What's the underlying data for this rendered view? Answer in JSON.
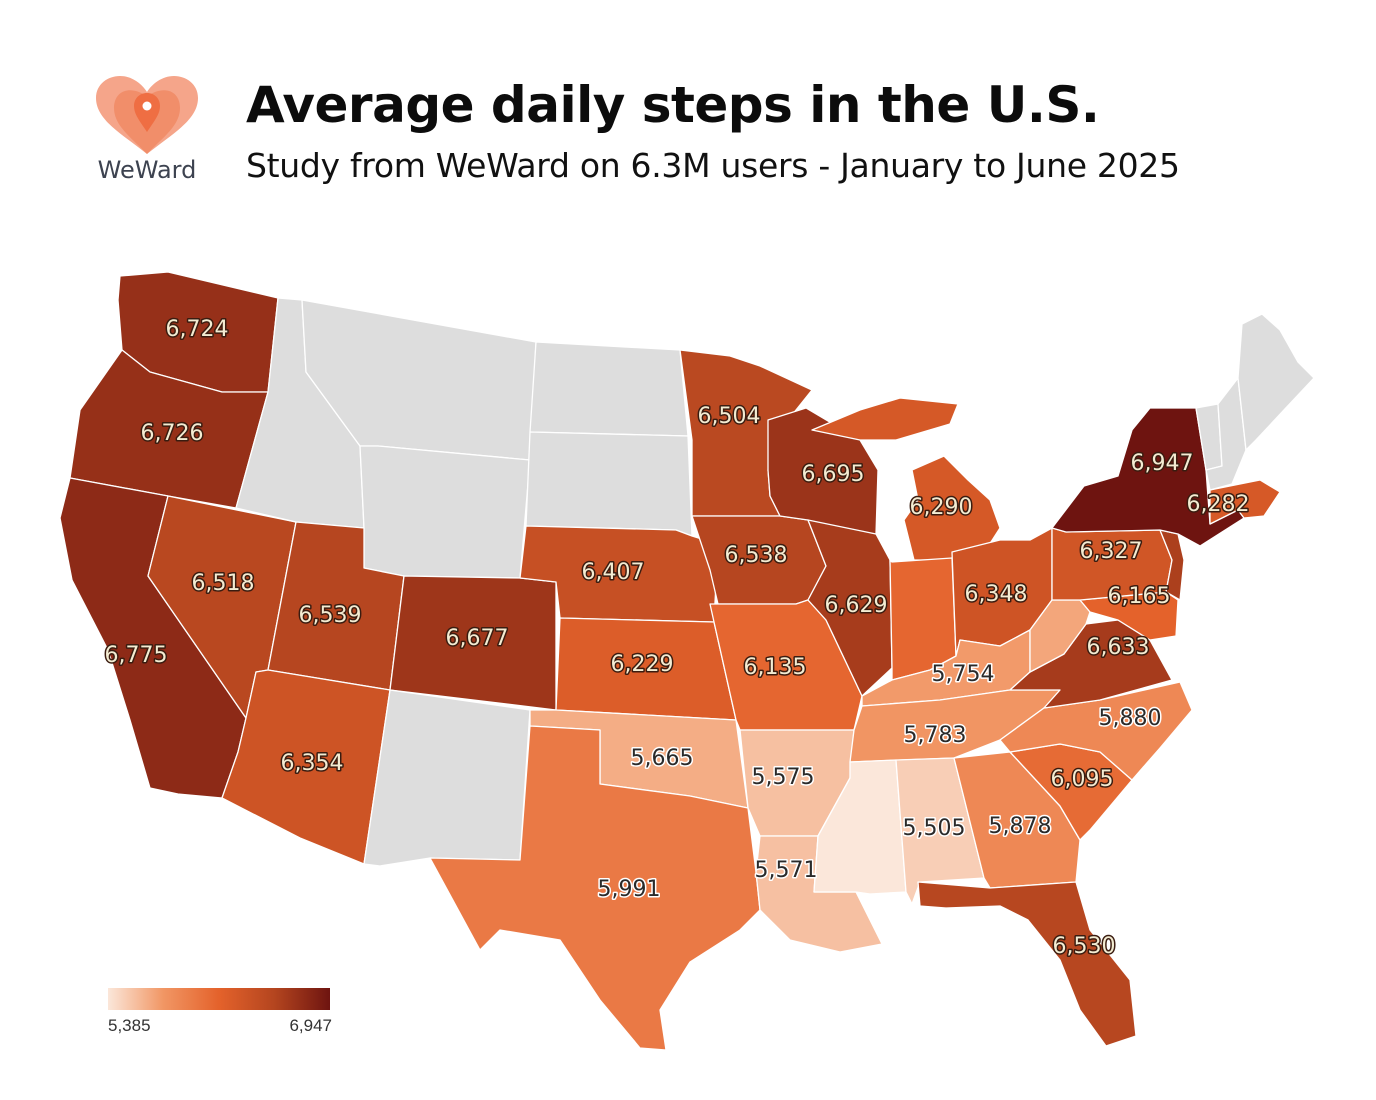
{
  "header": {
    "brand": "WeWard",
    "title": "Average daily steps in the U.S.",
    "subtitle": "Study from WeWard on 6.3M users - January to June 2025"
  },
  "legend": {
    "min_label": "5,385",
    "max_label": "6,947",
    "min": 5385,
    "max": 6947,
    "colors": [
      "#fbe7da",
      "#f19664",
      "#e4622b",
      "#b4451f",
      "#6e1410"
    ]
  },
  "no_data_color": "#dddddd",
  "states": [
    {
      "code": "WA",
      "steps": 6724,
      "label": "6,724"
    },
    {
      "code": "OR",
      "steps": 6726,
      "label": "6,726"
    },
    {
      "code": "CA",
      "steps": 6775,
      "label": "6,775"
    },
    {
      "code": "NV",
      "steps": 6518,
      "label": "6,518"
    },
    {
      "code": "UT",
      "steps": 6539,
      "label": "6,539"
    },
    {
      "code": "AZ",
      "steps": 6354,
      "label": "6,354"
    },
    {
      "code": "CO",
      "steps": 6677,
      "label": "6,677"
    },
    {
      "code": "NE",
      "steps": 6407,
      "label": "6,407"
    },
    {
      "code": "KS",
      "steps": 6229,
      "label": "6,229"
    },
    {
      "code": "OK",
      "steps": 5665,
      "label": "5,665"
    },
    {
      "code": "TX",
      "steps": 5991,
      "label": "5,991"
    },
    {
      "code": "MN",
      "steps": 6504,
      "label": "6,504"
    },
    {
      "code": "IA",
      "steps": 6538,
      "label": "6,538"
    },
    {
      "code": "MO",
      "steps": 6135,
      "label": "6,135"
    },
    {
      "code": "AR",
      "steps": 5575,
      "label": "5,575"
    },
    {
      "code": "LA",
      "steps": 5571,
      "label": "5,571"
    },
    {
      "code": "WI",
      "steps": 6695,
      "label": "6,695"
    },
    {
      "code": "IL",
      "steps": 6629,
      "label": "6,629"
    },
    {
      "code": "MI",
      "steps": 6290,
      "label": "6,290"
    },
    {
      "code": "IN",
      "steps": 6135,
      "label": ""
    },
    {
      "code": "OH",
      "steps": 6348,
      "label": "6,348"
    },
    {
      "code": "KY",
      "steps": 5754,
      "label": "5,754"
    },
    {
      "code": "TN",
      "steps": 5783,
      "label": "5,783"
    },
    {
      "code": "MS",
      "steps": 5385,
      "label": ""
    },
    {
      "code": "AL",
      "steps": 5505,
      "label": "5,505"
    },
    {
      "code": "GA",
      "steps": 5878,
      "label": "5,878"
    },
    {
      "code": "FL",
      "steps": 6530,
      "label": "6,530"
    },
    {
      "code": "SC",
      "steps": 6095,
      "label": "6,095"
    },
    {
      "code": "NC",
      "steps": 5880,
      "label": "5,880"
    },
    {
      "code": "VA",
      "steps": 6633,
      "label": "6,633"
    },
    {
      "code": "WV",
      "steps": 5700,
      "label": ""
    },
    {
      "code": "MD",
      "steps": 6165,
      "label": "6,165"
    },
    {
      "code": "PA",
      "steps": 6327,
      "label": "6,327"
    },
    {
      "code": "NJ",
      "steps": 6600,
      "label": ""
    },
    {
      "code": "NY",
      "steps": 6947,
      "label": "6,947"
    },
    {
      "code": "MA",
      "steps": 6282,
      "label": "6,282"
    },
    {
      "code": "ID",
      "steps": null,
      "label": ""
    },
    {
      "code": "MT",
      "steps": null,
      "label": ""
    },
    {
      "code": "WY",
      "steps": null,
      "label": ""
    },
    {
      "code": "ND",
      "steps": null,
      "label": ""
    },
    {
      "code": "SD",
      "steps": null,
      "label": ""
    },
    {
      "code": "NM",
      "steps": null,
      "label": ""
    },
    {
      "code": "ME",
      "steps": null,
      "label": ""
    },
    {
      "code": "VT",
      "steps": null,
      "label": ""
    },
    {
      "code": "NH",
      "steps": null,
      "label": ""
    }
  ]
}
